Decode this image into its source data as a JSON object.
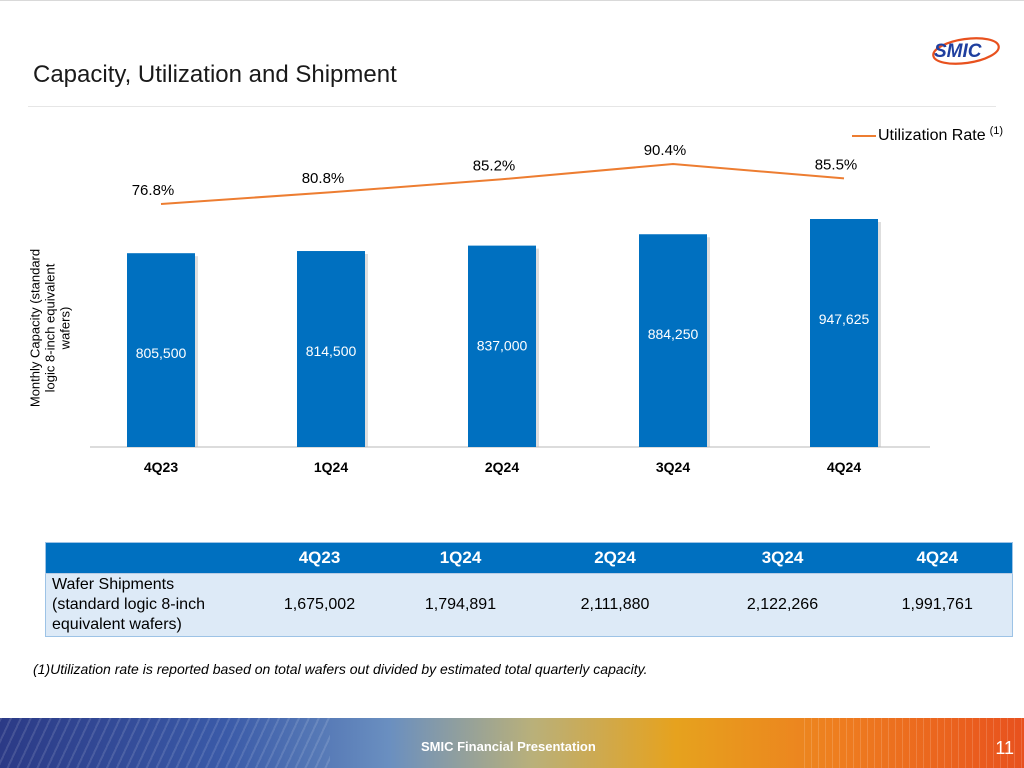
{
  "slide": {
    "title": "Capacity, Utilization and Shipment",
    "logo_text": "SMIC",
    "footer_text": "SMIC Financial Presentation",
    "page_number": "11",
    "footnote": "(1)Utilization rate is reported based on total wafers out divided by estimated total quarterly capacity.",
    "brand_blue": "#0070c0",
    "line_orange": "#ed7d31"
  },
  "chart_data": {
    "type": "bar",
    "categories": [
      "4Q23",
      "1Q24",
      "2Q24",
      "3Q24",
      "4Q24"
    ],
    "series": [
      {
        "values": [
          805500,
          814500,
          837000,
          884250,
          947625
        ],
        "labels": [
          "805,500",
          "814,500",
          "837,000",
          "884,250",
          "947,625"
        ],
        "color": "#0070c0"
      },
      {
        "name": "Utilization Rate",
        "type": "line",
        "values": [
          76.8,
          80.8,
          85.2,
          90.4,
          85.5
        ],
        "labels": [
          "76.8%",
          "80.8%",
          "85.2%",
          "90.4%",
          "85.5%"
        ],
        "color": "#ed7d31"
      }
    ],
    "ylabel": "Monthly Capacity (standard logic 8-inch equivalent wafers)",
    "legend": {
      "label": "Utilization Rate",
      "superscript": "(1)",
      "placement": "top-right"
    },
    "grid": false
  },
  "table": {
    "headers": [
      "",
      "4Q23",
      "1Q24",
      "2Q24",
      "3Q24",
      "4Q24"
    ],
    "row_label": "Wafer Shipments (standard logic 8-inch equivalent wafers)",
    "values": [
      "1,675,002",
      "1,794,891",
      "2,111,880",
      "2,122,266",
      "1,991,761"
    ]
  }
}
